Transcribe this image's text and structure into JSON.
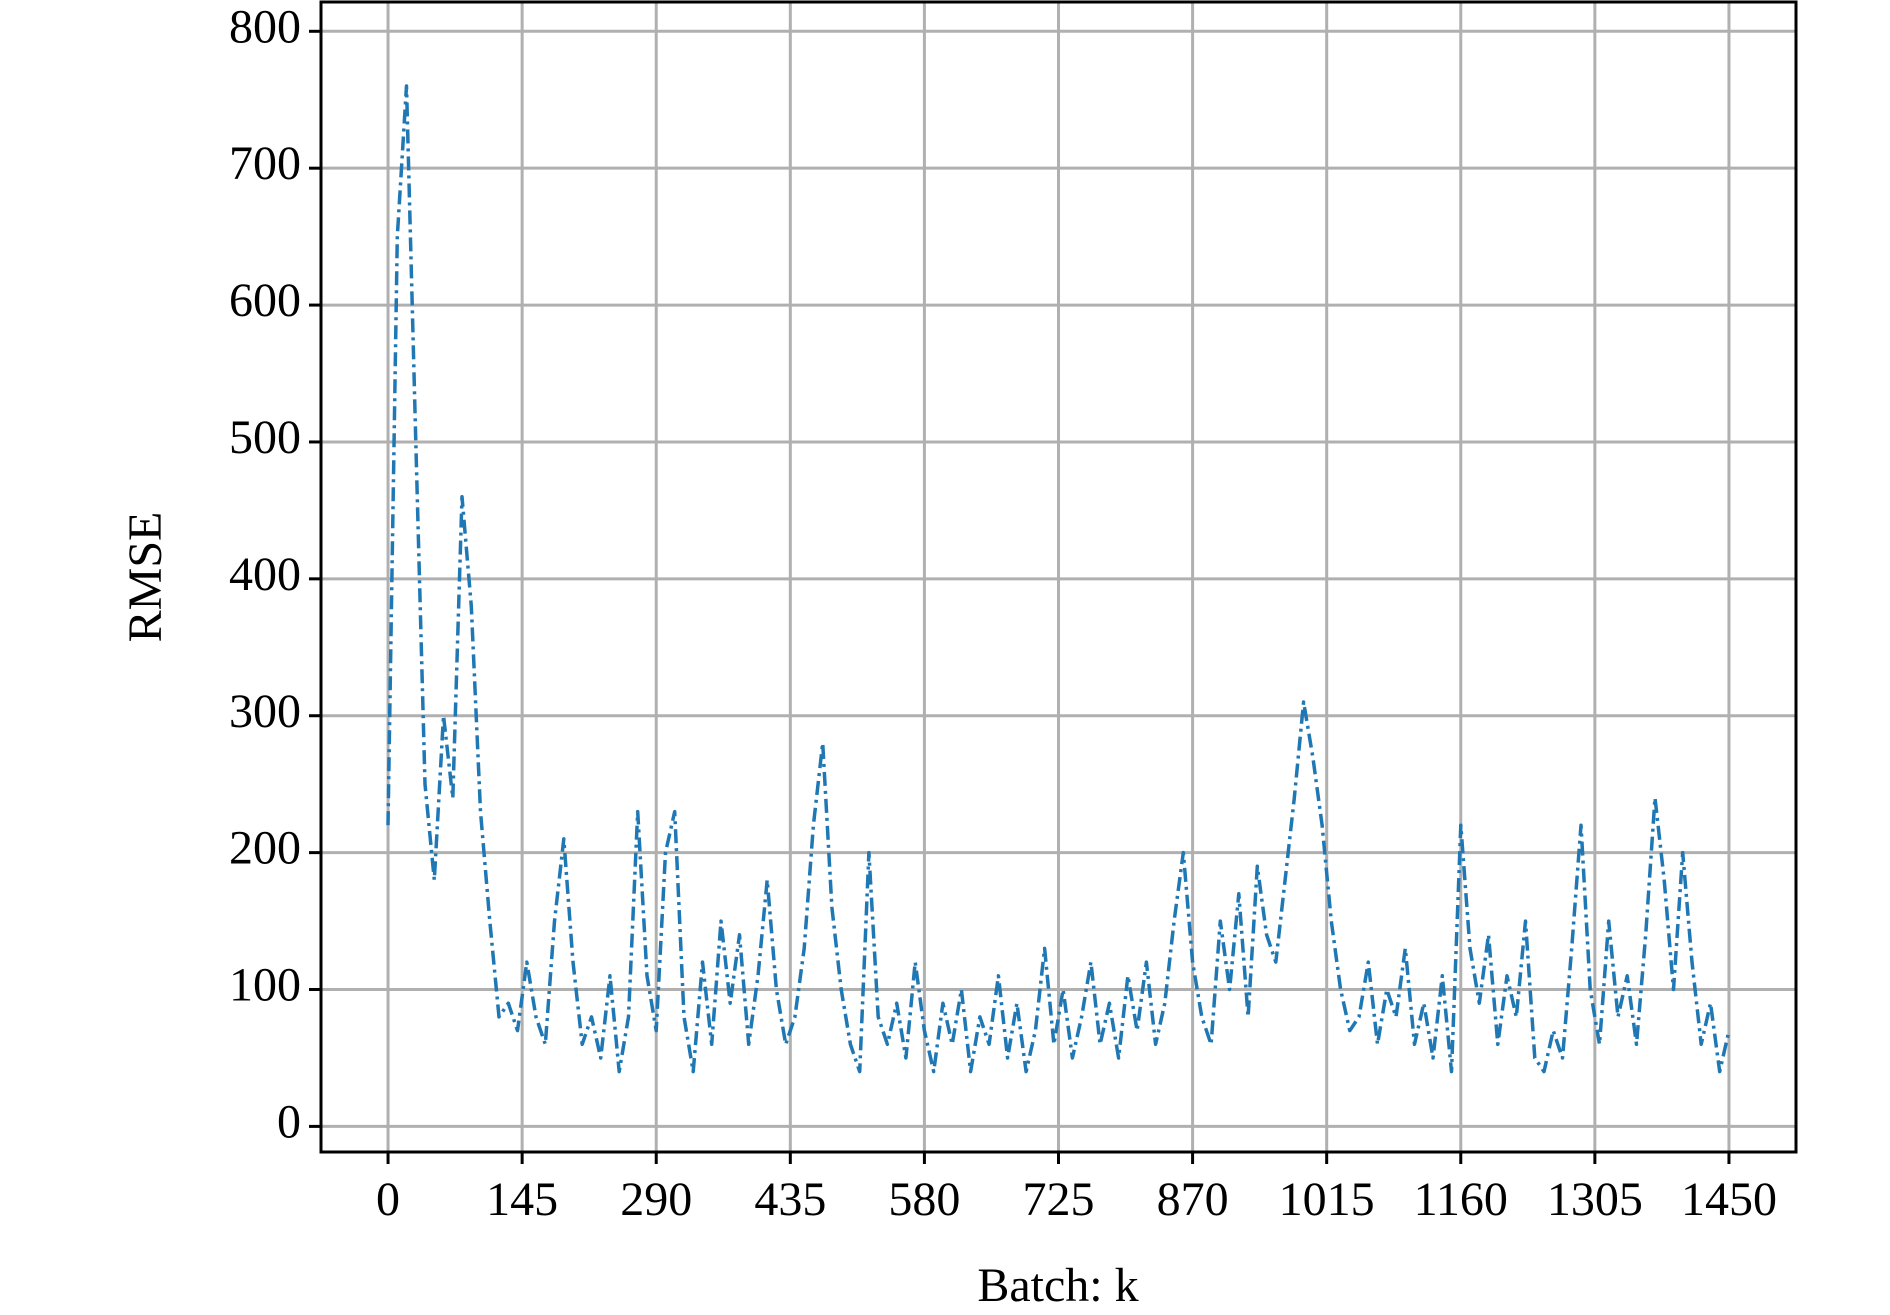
{
  "chart_data": {
    "type": "line",
    "xlabel": "Batch: k",
    "ylabel": "RMSE",
    "x": [
      0,
      10,
      20,
      30,
      40,
      50,
      60,
      70,
      80,
      90,
      100,
      110,
      120,
      130,
      140,
      150,
      160,
      170,
      180,
      190,
      200,
      210,
      220,
      230,
      240,
      250,
      260,
      270,
      280,
      290,
      300,
      310,
      320,
      330,
      340,
      350,
      360,
      370,
      380,
      390,
      400,
      410,
      420,
      430,
      440,
      450,
      460,
      470,
      480,
      490,
      500,
      510,
      520,
      530,
      540,
      550,
      560,
      570,
      580,
      590,
      600,
      610,
      620,
      630,
      640,
      650,
      660,
      670,
      680,
      690,
      700,
      710,
      720,
      730,
      740,
      750,
      760,
      770,
      780,
      790,
      800,
      810,
      820,
      830,
      840,
      850,
      860,
      870,
      880,
      890,
      900,
      910,
      920,
      930,
      940,
      950,
      960,
      970,
      980,
      990,
      1000,
      1010,
      1020,
      1030,
      1040,
      1050,
      1060,
      1070,
      1080,
      1090,
      1100,
      1110,
      1120,
      1130,
      1140,
      1150,
      1160,
      1170,
      1180,
      1190,
      1200,
      1210,
      1220,
      1230,
      1240,
      1250,
      1260,
      1270,
      1280,
      1290,
      1300,
      1310,
      1320,
      1330,
      1340,
      1350,
      1360,
      1370,
      1380,
      1390,
      1400,
      1410,
      1420,
      1430,
      1440,
      1450
    ],
    "series": [
      {
        "color": "#1f77b4",
        "values": [
          220,
          650,
          760,
          500,
          250,
          180,
          300,
          240,
          460,
          380,
          230,
          150,
          80,
          90,
          70,
          120,
          80,
          60,
          150,
          210,
          120,
          60,
          80,
          50,
          110,
          40,
          80,
          230,
          110,
          70,
          200,
          230,
          80,
          40,
          120,
          60,
          150,
          90,
          140,
          60,
          110,
          180,
          100,
          60,
          80,
          130,
          220,
          280,
          160,
          100,
          60,
          40,
          200,
          80,
          60,
          90,
          50,
          120,
          70,
          40,
          90,
          60,
          100,
          40,
          80,
          60,
          110,
          50,
          90,
          40,
          70,
          130,
          60,
          100,
          50,
          80,
          120,
          60,
          90,
          50,
          110,
          70,
          120,
          60,
          90,
          150,
          200,
          120,
          80,
          60,
          150,
          100,
          170,
          80,
          190,
          140,
          120,
          180,
          240,
          310,
          270,
          220,
          150,
          100,
          70,
          80,
          120,
          60,
          100,
          80,
          130,
          60,
          90,
          50,
          110,
          40,
          220,
          130,
          90,
          140,
          60,
          110,
          80,
          150,
          50,
          40,
          70,
          50,
          130,
          220,
          100,
          60,
          150,
          80,
          110,
          60,
          140,
          240,
          180,
          100,
          200,
          120,
          60,
          90,
          40,
          70
        ]
      }
    ],
    "xlim": [
      -72.5,
      1522.5
    ],
    "ylim": [
      -18.7,
      821.4
    ],
    "xticks": [
      0,
      145,
      290,
      435,
      580,
      725,
      870,
      1015,
      1160,
      1305,
      1450
    ],
    "yticks": [
      0,
      100,
      200,
      300,
      400,
      500,
      600,
      700,
      800
    ],
    "grid": true
  }
}
